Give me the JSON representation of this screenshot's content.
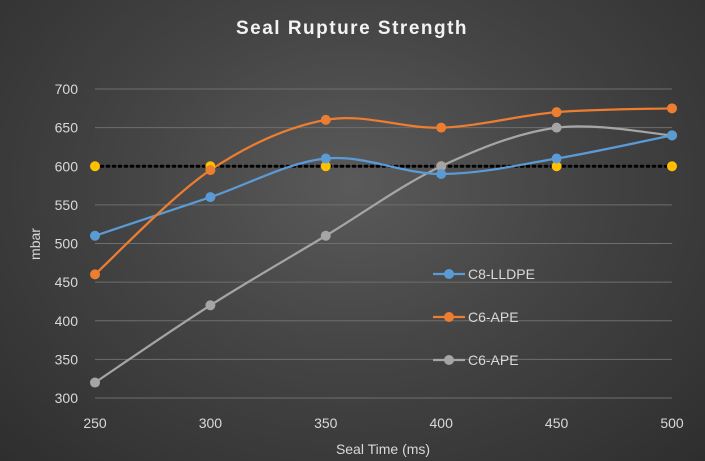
{
  "chart_data": {
    "type": "line",
    "title": "Seal Rupture Strength",
    "xlabel": "Seal Time (ms)",
    "ylabel": "mbar",
    "x": [
      250,
      300,
      350,
      400,
      450,
      500
    ],
    "xlim": [
      250,
      500
    ],
    "ylim": [
      300,
      700
    ],
    "y_ticks": [
      300,
      350,
      400,
      450,
      500,
      550,
      600,
      650,
      700
    ],
    "grid": true,
    "legend_position": "right",
    "series": [
      {
        "name": "C8-LLDPE",
        "color": "#5b9bd5",
        "values": [
          510,
          560,
          610,
          590,
          610,
          640
        ],
        "smooth": true,
        "in_legend": true
      },
      {
        "name": "C6-APE",
        "color": "#ed7d31",
        "values": [
          460,
          595,
          660,
          650,
          670,
          675
        ],
        "smooth": true,
        "in_legend": true
      },
      {
        "name": "C6-APE",
        "color": "#a5a5a5",
        "values": [
          320,
          420,
          510,
          600,
          650,
          640
        ],
        "smooth": true,
        "in_legend": true
      },
      {
        "name": "",
        "color": "#ffc000",
        "line_color": "#000000",
        "line_style": "dotted",
        "values": [
          600,
          600,
          600,
          600,
          600,
          600
        ],
        "smooth": false,
        "in_legend": false
      }
    ]
  }
}
